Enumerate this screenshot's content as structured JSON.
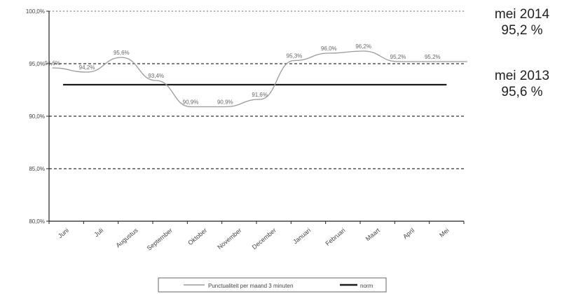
{
  "chart_data": {
    "type": "line",
    "categories": [
      "Juni",
      "Juli",
      "Augustus",
      "September",
      "Oktober",
      "November",
      "December",
      "Januari",
      "Februari",
      "Maart",
      "April",
      "Mei"
    ],
    "series": [
      {
        "name": "Punctualiteit per maand 3 minuten",
        "style": "gray-thin",
        "values": [
          94.6,
          94.2,
          95.6,
          93.4,
          90.9,
          90.9,
          91.6,
          95.3,
          96.0,
          96.2,
          95.2,
          95.2
        ],
        "labels": [
          "94,6%",
          "94,2%",
          "95,6%",
          "93,4%",
          "90,9%",
          "90,9%",
          "91,6%",
          "95,3%",
          "96,0%",
          "96,2%",
          "95,2%",
          "95,2%"
        ]
      },
      {
        "name": "norm",
        "style": "black-thick",
        "values": [
          93.0,
          93.0,
          93.0,
          93.0,
          93.0,
          93.0,
          93.0,
          93.0,
          93.0,
          93.0,
          93.0,
          93.0
        ]
      }
    ],
    "yticks": [
      80,
      85,
      90,
      95,
      100
    ],
    "ytick_labels": [
      "80,0%",
      "85,0%",
      "90,0%",
      "95,0%",
      "100,0%"
    ],
    "ylim": [
      80,
      100
    ],
    "grid": "dashed-horizontal",
    "legend": "bottom-center"
  },
  "sidebar": {
    "current_period": "mei 2014",
    "current_value": "95,2 %",
    "previous_period": "mei 2013",
    "previous_value": "95,6 %"
  },
  "colors": {
    "series_line": "#9a9a9a",
    "norm_line": "#1a1a1a",
    "grid": "#333333",
    "text": "#444444"
  }
}
